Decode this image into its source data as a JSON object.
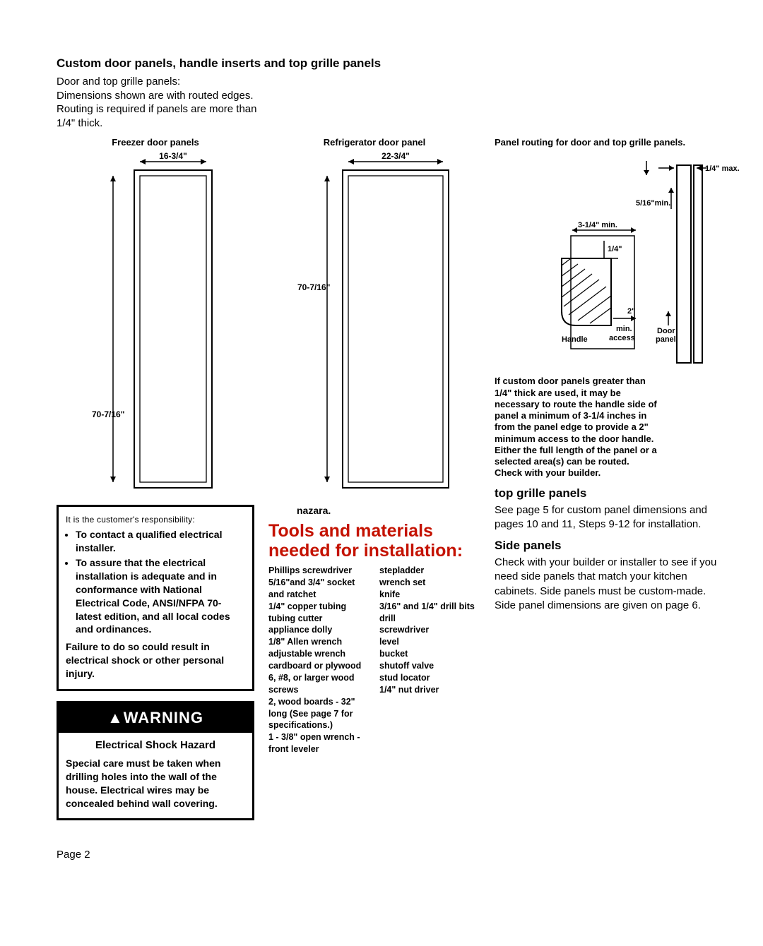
{
  "header": {
    "title": "Custom door panels, handle inserts and top grille panels",
    "intro": "Door and top grille panels:\nDimensions shown are with routed edges. Routing is required if panels are more than 1/4\" thick."
  },
  "freezer_panel": {
    "label": "Freezer door panels",
    "width": "16-3/4\"",
    "height": "70-7/16\""
  },
  "fridge_panel": {
    "label": "Refrigerator door panel",
    "width": "22-3/4\"",
    "height": "70-7/16\""
  },
  "routing_diagram": {
    "title": "Panel routing for door and top grille panels.",
    "max": "1/4\" max.",
    "mintop": "5/16\"min.",
    "minleft": "3-1/4\" min.",
    "offset": "1/4\"",
    "minaccess": "2\" min. access",
    "handle": "Handle",
    "door": "Door panel"
  },
  "routing_note": "If custom door panels greater than 1/4\" thick are used, it may be necessary to route the handle side of panel a minimum of 3-1/4 inches in from the panel edge to provide a 2\" minimum access to the door handle. Either the full length of the panel or a selected area(s) can be routed. Check with your builder.",
  "warning1": {
    "lead": "It is the customer's responsibility:",
    "li1": "To contact a qualified electrical installer.",
    "li2": "To assure that the electrical installation is adequate and in conformance with National Electrical Code, ANSI/NFPA 70-latest edition, and all local codes and ordinances.",
    "fail": "Failure to do so could result in electrical shock or other personal injury."
  },
  "warning2": {
    "banner": "▲WARNING",
    "sub": "Electrical Shock Hazard",
    "body": "Special care must be taken when drilling holes into the wall of the house. Electrical wires may be concealed behind wall covering.",
    "nazara": "nazara."
  },
  "tools": {
    "heading": "Tools and materials needed for installation:",
    "left": [
      "Phillips screwdriver",
      "5/16\"and 3/4\" socket and ratchet",
      "1/4\" copper tubing",
      "tubing cutter",
      "appliance dolly",
      "1/8\" Allen wrench",
      "adjustable wrench",
      "cardboard or plywood",
      "6, #8, or larger wood screws",
      "2, wood boards - 32\" long (See page 7 for specifications.)",
      "1 - 3/8\" open wrench - front leveler"
    ],
    "right": [
      "stepladder",
      "wrench set",
      "knife",
      "3/16\" and 1/4\" drill bits",
      "drill",
      "screwdriver",
      "level",
      "bucket",
      "shutoff valve",
      "stud locator",
      "1/4\" nut driver"
    ]
  },
  "grille": {
    "heading": "top grille panels",
    "body": "See page 5 for custom panel dimensions and pages 10 and 11, Steps 9-12 for installation."
  },
  "side": {
    "heading": "Side panels",
    "body": "Check with your builder or installer to see if you need side panels that match your kitchen cabinets. Side panels must be custom-made. Side panel dimensions are given on page 6."
  },
  "page": "Page 2"
}
